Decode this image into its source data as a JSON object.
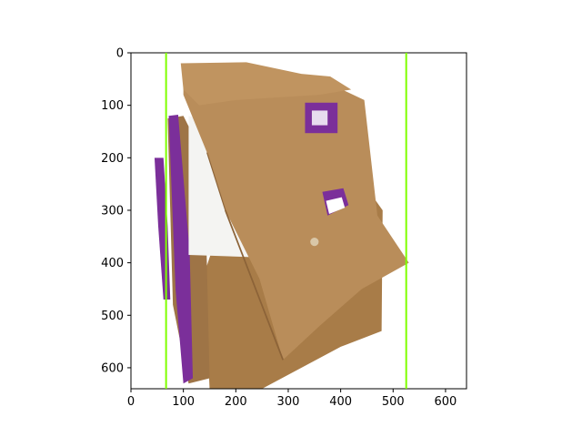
{
  "chart_data": {
    "type": "image",
    "title": "",
    "xlabel": "",
    "ylabel": "",
    "xlim": [
      0,
      640
    ],
    "ylim": [
      640,
      0
    ],
    "y_inverted": true,
    "x_ticks": [
      0,
      100,
      200,
      300,
      400,
      500,
      600
    ],
    "y_ticks": [
      0,
      100,
      200,
      300,
      400,
      500,
      600
    ],
    "x_tick_labels": [
      "0",
      "100",
      "200",
      "300",
      "400",
      "500",
      "600"
    ],
    "y_tick_labels": [
      "0",
      "100",
      "200",
      "300",
      "400",
      "500",
      "600"
    ],
    "grid": false,
    "image_content": "photo of cardboard box pieces with purple printed panels on white background",
    "vertical_lines": [
      {
        "x": 67,
        "y_range": [
          0,
          640
        ],
        "color": "#7fff00"
      },
      {
        "x": 525,
        "y_range": [
          0,
          640
        ],
        "color": "#7fff00"
      }
    ],
    "colors": {
      "cardboard": "#b98d5a",
      "cardboard_dark": "#9e7446",
      "purple": "#7b2f9a",
      "line": "#7fff00"
    }
  }
}
